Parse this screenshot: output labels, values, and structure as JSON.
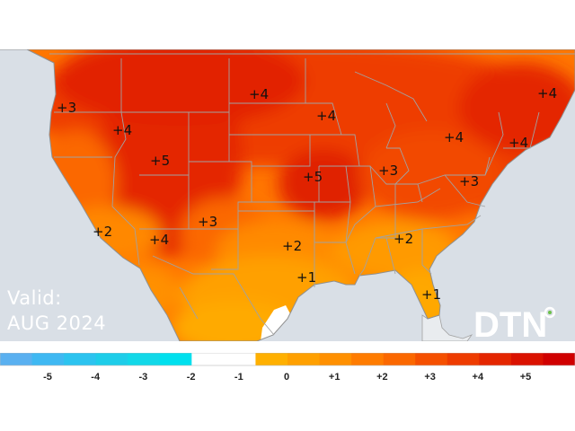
{
  "map": {
    "valid_label": "Valid:",
    "valid_period": "AUG 2024",
    "logo_text": "DTN",
    "anomalies": [
      {
        "id": "pnw",
        "label": "+3"
      },
      {
        "id": "idaho",
        "label": "+4"
      },
      {
        "id": "utah",
        "label": "+5"
      },
      {
        "id": "socal",
        "label": "+2"
      },
      {
        "id": "arizona",
        "label": "+4"
      },
      {
        "id": "newmexico",
        "label": "+3"
      },
      {
        "id": "northdakota",
        "label": "+4"
      },
      {
        "id": "minnesota",
        "label": "+4"
      },
      {
        "id": "kansas",
        "label": "+5"
      },
      {
        "id": "oklahoma",
        "label": "+2"
      },
      {
        "id": "texas",
        "label": "+1"
      },
      {
        "id": "indiana",
        "label": "+3"
      },
      {
        "id": "pennsylvania",
        "label": "+4"
      },
      {
        "id": "virginia",
        "label": "+3"
      },
      {
        "id": "newengland",
        "label": "+4"
      },
      {
        "id": "maine",
        "label": "+4"
      },
      {
        "id": "georgia",
        "label": "+2"
      },
      {
        "id": "florida",
        "label": "+1"
      }
    ]
  },
  "legend": {
    "colors": [
      "#5ab0f0",
      "#3fb8f2",
      "#2cc3ef",
      "#1ecde9",
      "#12d8e8",
      "#00e0ee",
      "#ffffff",
      "#ffffff",
      "#ffb000",
      "#ffa000",
      "#ff9000",
      "#ff7c00",
      "#fb6800",
      "#f55000",
      "#ee3c00",
      "#e42600",
      "#da1200",
      "#d00000"
    ],
    "ticks": [
      "-5",
      "-4",
      "-3",
      "-2",
      "-1",
      "0",
      "+1",
      "+2",
      "+3",
      "+4",
      "+5"
    ]
  },
  "colors": {
    "ocean": "#d9dfe6",
    "neutral_land": "#ffffff",
    "border": "#a2a2a2"
  }
}
